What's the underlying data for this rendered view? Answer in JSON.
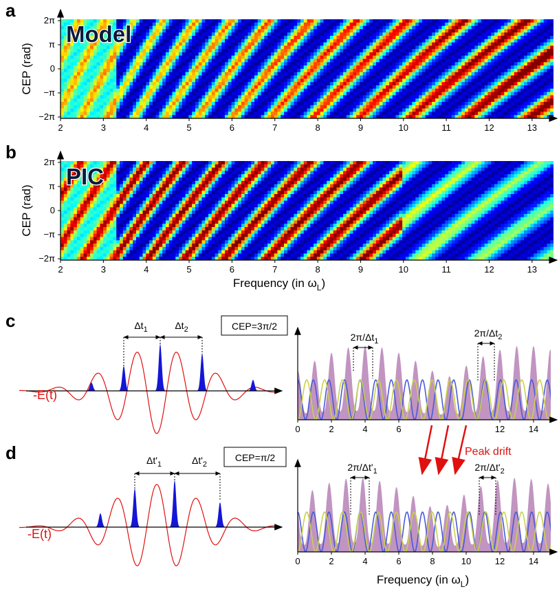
{
  "heatmaps": [
    {
      "letter": "a",
      "label": "Model",
      "ylabel": "CEP (rad)",
      "yticks": [
        "2π",
        "π",
        "0",
        "−π",
        "−2π"
      ],
      "xticks": [
        "2",
        "3",
        "4",
        "5",
        "6",
        "7",
        "8",
        "9",
        "10",
        "11",
        "12",
        "13"
      ]
    },
    {
      "letter": "b",
      "label": "PIC",
      "ylabel": "CEP (rad)",
      "yticks": [
        "2π",
        "π",
        "0",
        "−π",
        "−2π"
      ],
      "xticks": [
        "2",
        "3",
        "4",
        "5",
        "6",
        "7",
        "8",
        "9",
        "10",
        "11",
        "12",
        "13"
      ],
      "xlabel": "Frequency (in ω",
      "xlabel_sub": "L",
      "xlabel_end": ")"
    }
  ],
  "pulses": [
    {
      "letter": "c",
      "field_label": "-E(t)",
      "cep_box": "CEP=3π/2",
      "dt1": "Δt",
      "dt1_sub": "1",
      "dt2": "Δt",
      "dt2_sub": "2",
      "sp1": "2π/Δt",
      "sp1_sub": "1",
      "sp2": "2π/Δt",
      "sp2_sub": "2",
      "spectrum_xticks": [
        "0",
        "2",
        "4",
        "6",
        "12",
        "14"
      ]
    },
    {
      "letter": "d",
      "field_label": "-E(t)",
      "cep_box": "CEP=π/2",
      "dt1": "Δt'",
      "dt1_sub": "1",
      "dt2": "Δt'",
      "dt2_sub": "2",
      "sp1": "2π/Δt'",
      "sp1_sub": "1",
      "sp2": "2π/Δt'",
      "sp2_sub": "2",
      "spectrum_xticks": [
        "0",
        "2",
        "4",
        "6",
        "8",
        "10",
        "12",
        "14"
      ],
      "xlabel": "Frequency (in ω",
      "xlabel_sub": "L",
      "xlabel_end": ")"
    }
  ],
  "peak_drift": "Peak drift",
  "chart_data": [
    {
      "type": "heatmap",
      "title": "Model",
      "xlabel": "Frequency (in ωL)",
      "ylabel": "CEP (rad)",
      "xlim": [
        2,
        13.5
      ],
      "ylim": [
        "-2π",
        "2π"
      ],
      "colormap": "jet"
    },
    {
      "type": "heatmap",
      "title": "PIC",
      "xlabel": "Frequency (in ωL)",
      "ylabel": "CEP (rad)",
      "xlim": [
        2,
        13.5
      ],
      "ylim": [
        "-2π",
        "2π"
      ],
      "colormap": "jet"
    },
    {
      "type": "line",
      "title": "CEP=3π/2",
      "xlabel": "",
      "xlim": [
        0,
        15
      ],
      "series": [],
      "colors": [
        "#a05aa0",
        "#4a5ad6",
        "#c8d24a"
      ]
    },
    {
      "type": "line",
      "title": "CEP=π/2",
      "xlabel": "Frequency (in ωL)",
      "xlim": [
        0,
        15
      ],
      "series": [],
      "colors": [
        "#a05aa0",
        "#4a5ad6",
        "#c8d24a"
      ]
    }
  ],
  "colors": {
    "field": "#e01010",
    "burst": "#1515d8",
    "spectrum_fill": "#a05aa0",
    "mode1": "#4a5ad6",
    "mode2": "#c8d24a",
    "arrow": "#e01010"
  }
}
